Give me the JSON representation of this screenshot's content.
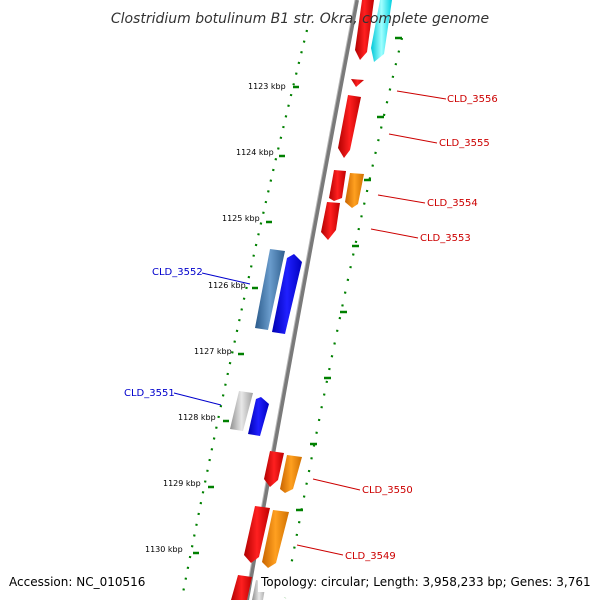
{
  "title": "Clostridium botulinum B1 str. Okra, complete genome",
  "ticks": [
    "1123 kbp",
    "1124 kbp",
    "1125 kbp",
    "1126 kbp",
    "1127 kbp",
    "1128 kbp",
    "1129 kbp",
    "1130 kbp"
  ],
  "gene_labels": {
    "CLD_3556": "CLD_3556",
    "CLD_3555": "CLD_3555",
    "CLD_3554": "CLD_3554",
    "CLD_3553": "CLD_3553",
    "CLD_3552": "CLD_3552",
    "CLD_3551": "CLD_3551",
    "CLD_3550": "CLD_3550",
    "CLD_3549": "CLD_3549"
  },
  "footer": {
    "accession": "Accession: NC_010516",
    "summary": "Topology: circular; Length: 3,958,233 bp; Genes: 3,761"
  },
  "colors": {
    "forward_label": "#cc0000",
    "reverse_label": "#0000cc",
    "red_gene": "#ff0000",
    "orange_gene": "#ff8c00",
    "cyan_gene": "#00ffff",
    "blue_gene": "#0000ff",
    "steelblue_gene": "#4682b4",
    "gray_gene": "#b0b0b0",
    "tick_green": "#008000",
    "backbone": "#808080"
  }
}
